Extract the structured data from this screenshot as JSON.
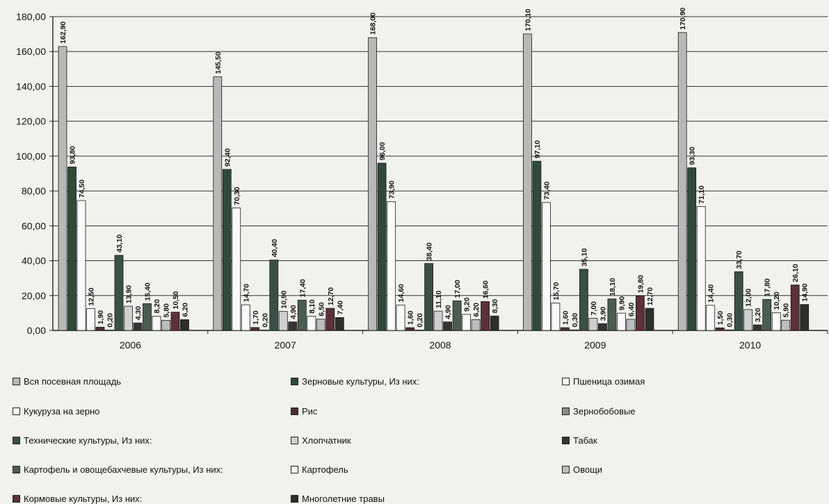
{
  "chart_data": {
    "type": "bar",
    "title": "",
    "xlabel": "",
    "ylabel": "",
    "ylim": [
      0,
      180
    ],
    "yticks": [
      "0,00",
      "20,00",
      "40,00",
      "60,00",
      "80,00",
      "100,00",
      "120,00",
      "140,00",
      "160,00",
      "180,00"
    ],
    "grid": true,
    "legend_position": "bottom",
    "categories": [
      "2006",
      "2007",
      "2008",
      "2009",
      "2010"
    ],
    "series": [
      {
        "name": "Вся посевная площадь",
        "color": "#b8b8b8",
        "values": [
          162.9,
          145.5,
          168.0,
          170.1,
          170.9
        ],
        "labels": [
          "162,90",
          "145,50",
          "168,00",
          "170,10",
          "170,90"
        ]
      },
      {
        "name": "Зерновые культуры, Из них:",
        "color": "#2f4a3a",
        "values": [
          93.8,
          92.4,
          96.0,
          97.1,
          93.3
        ],
        "labels": [
          "93,80",
          "92,40",
          "96,00",
          "97,10",
          "93,30"
        ]
      },
      {
        "name": "Пшеница озимая",
        "color": "#fafafa",
        "values": [
          74.5,
          70.3,
          73.9,
          73.4,
          71.1
        ],
        "labels": [
          "74,50",
          "70,30",
          "73,90",
          "73,40",
          "71,10"
        ]
      },
      {
        "name": "Кукуруза на зерно",
        "color": "#fafafa",
        "values": [
          12.5,
          14.7,
          14.6,
          15.7,
          14.4
        ],
        "labels": [
          "12,50",
          "14,70",
          "14,60",
          "15,70",
          "14,40"
        ]
      },
      {
        "name": "Рис",
        "color": "#4a2f34",
        "values": [
          1.9,
          1.7,
          1.6,
          1.6,
          1.5
        ],
        "labels": [
          "1,90",
          "1,70",
          "1,60",
          "1,60",
          "1,50"
        ]
      },
      {
        "name": "Зернобобовые",
        "color": "#8a8a8a",
        "values": [
          0.2,
          0.2,
          0.2,
          0.3,
          0.3
        ],
        "labels": [
          "0,20",
          "0,20",
          "0,20",
          "0,30",
          "0,30"
        ]
      },
      {
        "name": "Технические культуры, Из них:",
        "color": "#3b4f46",
        "values": [
          43.1,
          40.4,
          38.4,
          35.1,
          33.7
        ],
        "labels": [
          "43,10",
          "40,40",
          "38,40",
          "35,10",
          "33,70"
        ]
      },
      {
        "name": "Хлопчатник",
        "color": "#cfcfcf",
        "values": [
          13.9,
          10.9,
          11.1,
          7.0,
          12.0
        ],
        "labels": [
          "13,90",
          "10,90",
          "11,10",
          "7,00",
          "12,00"
        ]
      },
      {
        "name": "Табак",
        "color": "#343434",
        "values": [
          4.3,
          4.9,
          4.9,
          3.9,
          3.2
        ],
        "labels": [
          "4,30",
          "4,90",
          "4,90",
          "3,90",
          "3,20"
        ]
      },
      {
        "name": "Картофель и овощебахчевые культуры, Из них:",
        "color": "#4c5c50",
        "values": [
          15.4,
          17.4,
          17.0,
          18.1,
          17.8
        ],
        "labels": [
          "15,40",
          "17,40",
          "17,00",
          "18,10",
          "17,80"
        ]
      },
      {
        "name": "Картофель",
        "color": "#fafafa",
        "values": [
          8.2,
          8.1,
          9.2,
          9.9,
          10.2
        ],
        "labels": [
          "8,20",
          "8,10",
          "9,20",
          "9,90",
          "10,20"
        ]
      },
      {
        "name": "Овощи",
        "color": "#bdbdbd",
        "values": [
          5.8,
          6.5,
          6.2,
          6.4,
          5.9
        ],
        "labels": [
          "5,80",
          "6,50",
          "6,20",
          "6,40",
          "5,90"
        ]
      },
      {
        "name": "Кормовые культуры, Из них:",
        "color": "#5a3238",
        "values": [
          10.5,
          12.7,
          16.6,
          19.8,
          26.1
        ],
        "labels": [
          "10,50",
          "12,70",
          "16,60",
          "19,80",
          "26,10"
        ]
      },
      {
        "name": "Многолетние травы",
        "color": "#2e2e2e",
        "values": [
          6.2,
          7.4,
          8.3,
          12.7,
          14.9
        ],
        "labels": [
          "6,20",
          "7,40",
          "8,30",
          "12,70",
          "14,90"
        ]
      }
    ]
  }
}
